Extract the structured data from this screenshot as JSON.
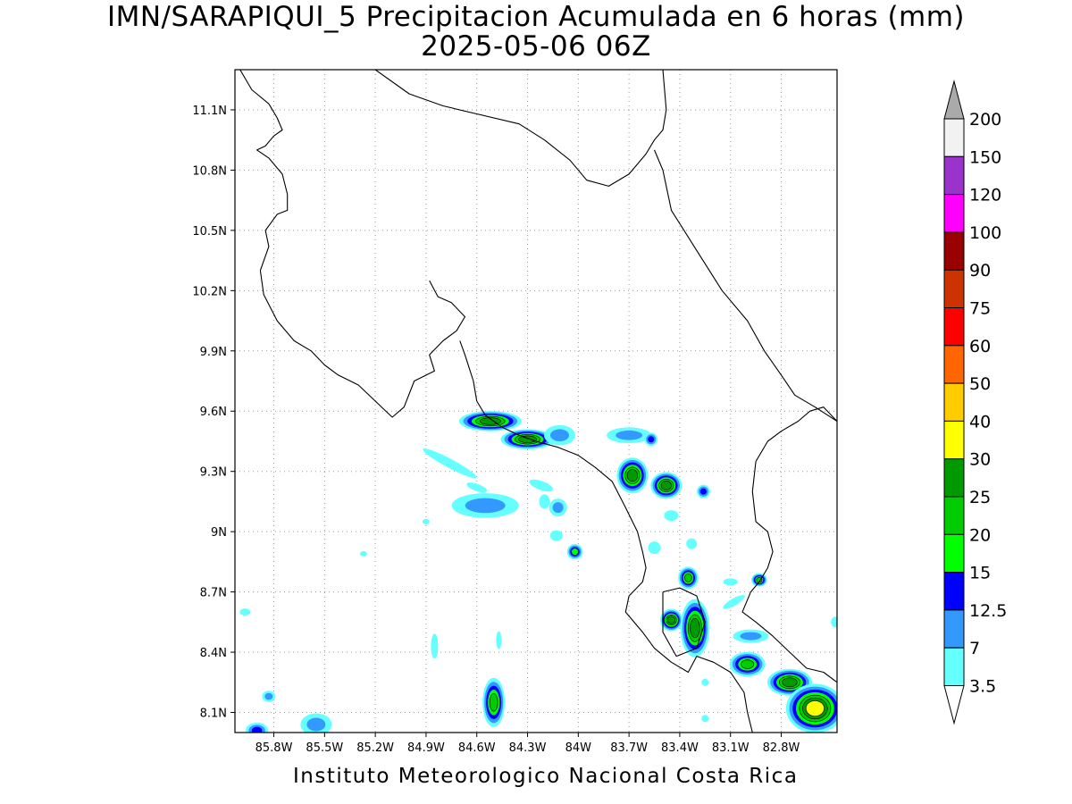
{
  "title": {
    "line1": "IMN/SARAPIQUI_5 Precipitacion Acumulada en 6 horas (mm)",
    "line2": "2025-05-06 06Z"
  },
  "footer": "Instituto Meteorologico Nacional Costa Rica",
  "map": {
    "lon_range": [
      -86.03,
      -82.47
    ],
    "lat_range": [
      8.0,
      11.3
    ],
    "grid": true,
    "x_ticks": [
      {
        "value": -85.8,
        "label": "85.8W"
      },
      {
        "value": -85.5,
        "label": "85.5W"
      },
      {
        "value": -85.2,
        "label": "85.2W"
      },
      {
        "value": -84.9,
        "label": "84.9W"
      },
      {
        "value": -84.6,
        "label": "84.6W"
      },
      {
        "value": -84.3,
        "label": "84.3W"
      },
      {
        "value": -84.0,
        "label": "84W"
      },
      {
        "value": -83.7,
        "label": "83.7W"
      },
      {
        "value": -83.4,
        "label": "83.4W"
      },
      {
        "value": -83.1,
        "label": "83.1W"
      },
      {
        "value": -82.8,
        "label": "82.8W"
      }
    ],
    "y_ticks": [
      {
        "value": 8.1,
        "label": "8.1N"
      },
      {
        "value": 8.4,
        "label": "8.4N"
      },
      {
        "value": 8.7,
        "label": "8.7N"
      },
      {
        "value": 9.0,
        "label": "9N"
      },
      {
        "value": 9.3,
        "label": "9.3N"
      },
      {
        "value": 9.6,
        "label": "9.6N"
      },
      {
        "value": 9.9,
        "label": "9.9N"
      },
      {
        "value": 10.2,
        "label": "10.2N"
      },
      {
        "value": 10.5,
        "label": "10.5N"
      },
      {
        "value": 10.8,
        "label": "10.8N"
      },
      {
        "value": 11.1,
        "label": "11.1N"
      }
    ],
    "coastline": [
      [
        [
          -86.0,
          11.3
        ],
        [
          -85.93,
          11.2
        ],
        [
          -85.83,
          11.13
        ],
        [
          -85.78,
          11.06
        ],
        [
          -85.75,
          11.0
        ],
        [
          -85.8,
          10.97
        ],
        [
          -85.85,
          10.92
        ],
        [
          -85.9,
          10.9
        ],
        [
          -85.83,
          10.86
        ],
        [
          -85.75,
          10.78
        ],
        [
          -85.72,
          10.68
        ],
        [
          -85.72,
          10.6
        ],
        [
          -85.78,
          10.58
        ],
        [
          -85.85,
          10.5
        ],
        [
          -85.83,
          10.42
        ],
        [
          -85.88,
          10.3
        ],
        [
          -85.86,
          10.18
        ],
        [
          -85.78,
          10.05
        ],
        [
          -85.68,
          9.95
        ],
        [
          -85.58,
          9.9
        ],
        [
          -85.5,
          9.83
        ],
        [
          -85.42,
          9.78
        ],
        [
          -85.3,
          9.73
        ],
        [
          -85.2,
          9.65
        ],
        [
          -85.1,
          9.57
        ],
        [
          -85.03,
          9.62
        ],
        [
          -84.97,
          9.75
        ],
        [
          -84.85,
          9.8
        ],
        [
          -84.88,
          9.88
        ],
        [
          -84.8,
          9.95
        ],
        [
          -84.72,
          10.0
        ],
        [
          -84.67,
          10.07
        ],
        [
          -84.75,
          10.14
        ],
        [
          -84.83,
          10.17
        ],
        [
          -84.88,
          10.25
        ]
      ],
      [
        [
          -84.7,
          9.95
        ],
        [
          -84.67,
          9.88
        ],
        [
          -84.62,
          9.75
        ],
        [
          -84.6,
          9.65
        ],
        [
          -84.55,
          9.58
        ],
        [
          -84.45,
          9.52
        ],
        [
          -84.35,
          9.48
        ],
        [
          -84.25,
          9.45
        ],
        [
          -84.12,
          9.42
        ],
        [
          -84.0,
          9.38
        ],
        [
          -83.9,
          9.32
        ],
        [
          -83.8,
          9.25
        ],
        [
          -83.72,
          9.12
        ],
        [
          -83.65,
          9.0
        ],
        [
          -83.62,
          8.9
        ],
        [
          -83.6,
          8.82
        ],
        [
          -83.62,
          8.75
        ],
        [
          -83.7,
          8.68
        ],
        [
          -83.72,
          8.6
        ],
        [
          -83.62,
          8.5
        ],
        [
          -83.55,
          8.42
        ],
        [
          -83.45,
          8.35
        ],
        [
          -83.35,
          8.3
        ],
        [
          -83.3,
          8.38
        ],
        [
          -83.2,
          8.35
        ],
        [
          -83.1,
          8.3
        ],
        [
          -83.02,
          8.2
        ],
        [
          -83.0,
          8.1
        ],
        [
          -82.97,
          8.0
        ]
      ],
      [
        [
          -85.2,
          11.3
        ],
        [
          -85.0,
          11.18
        ],
        [
          -84.8,
          11.12
        ],
        [
          -84.6,
          11.08
        ],
        [
          -84.35,
          11.03
        ],
        [
          -84.2,
          10.95
        ],
        [
          -84.05,
          10.85
        ],
        [
          -83.95,
          10.75
        ],
        [
          -83.82,
          10.72
        ],
        [
          -83.7,
          10.78
        ],
        [
          -83.6,
          10.88
        ],
        [
          -83.55,
          10.95
        ],
        [
          -83.5,
          11.0
        ],
        [
          -83.48,
          11.1
        ],
        [
          -83.5,
          11.3
        ]
      ],
      [
        [
          -83.55,
          10.9
        ],
        [
          -83.5,
          10.8
        ],
        [
          -83.45,
          10.6
        ],
        [
          -83.3,
          10.4
        ],
        [
          -83.15,
          10.2
        ],
        [
          -83.0,
          10.05
        ],
        [
          -82.9,
          9.9
        ],
        [
          -82.8,
          9.78
        ],
        [
          -82.72,
          9.68
        ],
        [
          -82.6,
          9.62
        ],
        [
          -82.47,
          9.55
        ]
      ],
      [
        [
          -82.47,
          9.55
        ],
        [
          -82.55,
          9.62
        ],
        [
          -82.63,
          9.6
        ],
        [
          -82.7,
          9.55
        ],
        [
          -82.8,
          9.5
        ],
        [
          -82.88,
          9.45
        ],
        [
          -82.95,
          9.35
        ],
        [
          -82.97,
          9.2
        ],
        [
          -82.95,
          9.05
        ],
        [
          -82.88,
          9.0
        ],
        [
          -82.85,
          8.9
        ],
        [
          -82.88,
          8.82
        ],
        [
          -82.93,
          8.75
        ],
        [
          -82.98,
          8.7
        ],
        [
          -83.03,
          8.6
        ],
        [
          -82.95,
          8.55
        ],
        [
          -82.85,
          8.48
        ],
        [
          -82.75,
          8.4
        ],
        [
          -82.65,
          8.32
        ],
        [
          -82.55,
          8.3
        ],
        [
          -82.47,
          8.25
        ]
      ],
      [
        [
          -83.5,
          8.7
        ],
        [
          -83.4,
          8.72
        ],
        [
          -83.3,
          8.68
        ],
        [
          -83.25,
          8.55
        ],
        [
          -83.3,
          8.42
        ],
        [
          -83.42,
          8.38
        ],
        [
          -83.5,
          8.5
        ],
        [
          -83.5,
          8.7
        ]
      ]
    ],
    "precip_cells": [
      {
        "lon": -84.52,
        "lat": 9.55,
        "rx": 28,
        "ry": 9,
        "level": 25
      },
      {
        "lon": -84.3,
        "lat": 9.46,
        "rx": 24,
        "ry": 9,
        "level": 25
      },
      {
        "lon": -84.11,
        "lat": 9.48,
        "rx": 14,
        "ry": 9,
        "level": 7
      },
      {
        "lon": -83.68,
        "lat": 9.28,
        "rx": 14,
        "ry": 16,
        "level": 25
      },
      {
        "lon": -83.48,
        "lat": 9.23,
        "rx": 14,
        "ry": 12,
        "level": 25
      },
      {
        "lon": -84.55,
        "lat": 9.13,
        "rx": 30,
        "ry": 11,
        "level": 7
      },
      {
        "lon": -84.12,
        "lat": 9.12,
        "rx": 8,
        "ry": 8,
        "level": 7
      },
      {
        "lon": -84.02,
        "lat": 8.9,
        "rx": 7,
        "ry": 7,
        "level": 15
      },
      {
        "lon": -83.35,
        "lat": 8.77,
        "rx": 9,
        "ry": 10,
        "level": 20
      },
      {
        "lon": -83.45,
        "lat": 8.56,
        "rx": 10,
        "ry": 10,
        "level": 25
      },
      {
        "lon": -83.31,
        "lat": 8.52,
        "rx": 13,
        "ry": 26,
        "level": 25
      },
      {
        "lon": -83.0,
        "lat": 8.34,
        "rx": 16,
        "ry": 11,
        "level": 20
      },
      {
        "lon": -82.75,
        "lat": 8.25,
        "rx": 20,
        "ry": 12,
        "level": 25
      },
      {
        "lon": -82.6,
        "lat": 8.12,
        "rx": 26,
        "ry": 22,
        "level": 30
      },
      {
        "lon": -84.5,
        "lat": 8.15,
        "rx": 10,
        "ry": 22,
        "level": 20
      },
      {
        "lon": -85.55,
        "lat": 8.04,
        "rx": 14,
        "ry": 10,
        "level": 7
      },
      {
        "lon": -85.9,
        "lat": 8.01,
        "rx": 10,
        "ry": 7,
        "level": 12.5
      },
      {
        "lon": -85.83,
        "lat": 8.18,
        "rx": 6,
        "ry": 5,
        "level": 7
      },
      {
        "lon": -83.7,
        "lat": 9.48,
        "rx": 20,
        "ry": 7,
        "level": 7
      },
      {
        "lon": -83.57,
        "lat": 9.46,
        "rx": 6,
        "ry": 6,
        "level": 12.5
      },
      {
        "lon": -83.26,
        "lat": 9.2,
        "rx": 6,
        "ry": 6,
        "level": 12.5
      },
      {
        "lon": -82.93,
        "lat": 8.76,
        "rx": 7,
        "ry": 6,
        "level": 20
      },
      {
        "lon": -82.98,
        "lat": 8.48,
        "rx": 16,
        "ry": 6,
        "level": 7
      }
    ],
    "light_precip": [
      {
        "lon": -84.76,
        "lat": 9.34,
        "rx": 34,
        "ry": 5,
        "rot": 28
      },
      {
        "lon": -84.6,
        "lat": 9.22,
        "rx": 12,
        "ry": 4,
        "rot": 20
      },
      {
        "lon": -84.22,
        "lat": 9.23,
        "rx": 14,
        "ry": 5,
        "rot": 20
      },
      {
        "lon": -84.2,
        "lat": 9.15,
        "rx": 6,
        "ry": 8,
        "rot": 0
      },
      {
        "lon": -83.45,
        "lat": 9.08,
        "rx": 8,
        "ry": 6,
        "rot": 0
      },
      {
        "lon": -84.13,
        "lat": 8.98,
        "rx": 7,
        "ry": 6,
        "rot": 0
      },
      {
        "lon": -83.55,
        "lat": 8.92,
        "rx": 7,
        "ry": 7,
        "rot": 0
      },
      {
        "lon": -83.33,
        "lat": 8.94,
        "rx": 6,
        "ry": 6,
        "rot": 0
      },
      {
        "lon": -83.1,
        "lat": 8.75,
        "rx": 8,
        "ry": 4,
        "rot": 0
      },
      {
        "lon": -83.08,
        "lat": 8.65,
        "rx": 14,
        "ry": 4,
        "rot": -30
      },
      {
        "lon": -84.85,
        "lat": 8.43,
        "rx": 4,
        "ry": 14,
        "rot": 0
      },
      {
        "lon": -84.47,
        "lat": 8.46,
        "rx": 3,
        "ry": 10,
        "rot": 0
      },
      {
        "lon": -85.97,
        "lat": 8.6,
        "rx": 6,
        "ry": 4,
        "rot": 0
      },
      {
        "lon": -85.27,
        "lat": 8.89,
        "rx": 4,
        "ry": 3,
        "rot": 0
      },
      {
        "lon": -82.48,
        "lat": 8.55,
        "rx": 5,
        "ry": 6,
        "rot": 0
      },
      {
        "lon": -83.25,
        "lat": 8.07,
        "rx": 4,
        "ry": 4,
        "rot": 0
      },
      {
        "lon": -83.25,
        "lat": 8.25,
        "rx": 4,
        "ry": 4,
        "rot": 0
      },
      {
        "lon": -84.9,
        "lat": 9.05,
        "rx": 4,
        "ry": 3,
        "rot": 0
      }
    ]
  },
  "colorbar": {
    "levels": [
      {
        "label": "3.5",
        "color": "#66ffff"
      },
      {
        "label": "7",
        "color": "#3399ff"
      },
      {
        "label": "12.5",
        "color": "#0000ff"
      },
      {
        "label": "15",
        "color": "#00ff00"
      },
      {
        "label": "20",
        "color": "#00cc00"
      },
      {
        "label": "25",
        "color": "#009900"
      },
      {
        "label": "30",
        "color": "#ffff00"
      },
      {
        "label": "40",
        "color": "#ffcc00"
      },
      {
        "label": "50",
        "color": "#ff6600"
      },
      {
        "label": "60",
        "color": "#ff0000"
      },
      {
        "label": "75",
        "color": "#cc3300"
      },
      {
        "label": "90",
        "color": "#990000"
      },
      {
        "label": "100",
        "color": "#ff00ff"
      },
      {
        "label": "120",
        "color": "#9933cc"
      },
      {
        "label": "150",
        "color": "#f2f2f2"
      },
      {
        "label": "200",
        "color": "#aaaaaa"
      }
    ],
    "colors": {
      "3.5": "#66ffff",
      "7": "#3399ff",
      "12.5": "#0000ff",
      "15": "#00ff00",
      "20": "#00cc00",
      "25": "#009900",
      "30": "#ffff00",
      "40": "#ffcc00",
      "50": "#ff6600",
      "60": "#ff0000"
    }
  }
}
